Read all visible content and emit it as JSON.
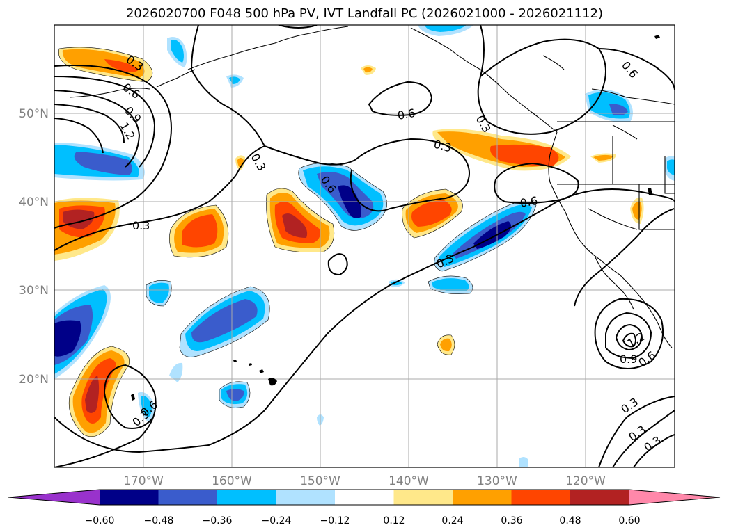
{
  "title": "2026020700 F048 500 hPa PV, IVT Landfall PC (2026021000 - 2026021112)",
  "axes": {
    "lon_labels": [
      "170°W",
      "160°W",
      "150°W",
      "140°W",
      "130°W",
      "120°W"
    ],
    "lat_labels": [
      "50°N",
      "40°N",
      "30°N",
      "20°N"
    ]
  },
  "contour_labels": [
    "0.3",
    "0.6",
    "0.9",
    "1.2",
    "0.3",
    "0.3",
    "0.6",
    "0.3",
    "0.6",
    "0.3",
    "0.6",
    "0.3",
    "0.6",
    "0.9",
    "1.2",
    "0.6",
    "0.3",
    "0.3",
    "0.3",
    "0.3",
    "0.6"
  ],
  "colorbar": {
    "ticks": [
      "−0.60",
      "−0.48",
      "−0.36",
      "−0.24",
      "−0.12",
      "0.12",
      "0.24",
      "0.36",
      "0.48",
      "0.60"
    ],
    "colors": [
      "#9932cc",
      "#000088",
      "#3a5ccc",
      "#00bfff",
      "#b0e2ff",
      "#ffffff",
      "#ffe88a",
      "#ffa000",
      "#ff4500",
      "#b22222",
      "#ff88aa"
    ]
  }
}
